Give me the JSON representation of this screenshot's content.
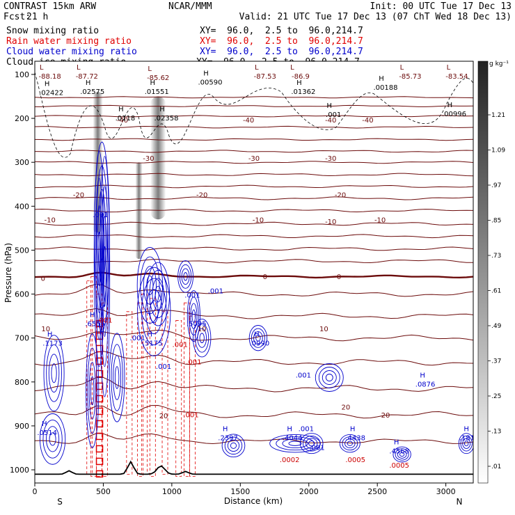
{
  "header": {
    "model": "CONTRAST 15km ARW",
    "center": "NCAR/MMM",
    "init": "Init: 00 UTC Tue 17 Dec 13",
    "fcst_label": "Fcst:",
    "fcst_value": "21 h",
    "valid": "Valid: 21 UTC Tue 17 Dec 13 (07 ChT Wed 18 Dec 13)",
    "fields": [
      {
        "name": "Snow mixing ratio",
        "xy": "XY=  96.0,  2.5 to  96.0,214.7",
        "color": "#000000"
      },
      {
        "name": "Rain water mixing ratio",
        "xy": "XY=  96.0,  2.5 to  96.0,214.7",
        "color": "#e00000"
      },
      {
        "name": "Cloud water mixing ratio",
        "xy": "XY=  96.0,  2.5 to  96.0,214.7",
        "color": "#0000cc"
      },
      {
        "name": "Cloud ice mixing ratio",
        "xy": "XY=  96.0,  2.5 to  96.0,214.7",
        "color": "#000000"
      }
    ]
  },
  "colorbar": {
    "unit": "g kg⁻¹",
    "ticks": [
      "1.21",
      "1.09",
      ".97",
      ".85",
      ".73",
      ".61",
      ".49",
      ".37",
      ".25",
      ".13",
      ".01"
    ]
  },
  "chart_data": {
    "type": "cross-section",
    "xlabel": "Distance (km)",
    "ylabel": "Pressure (hPa)",
    "x_ticks": [
      "0",
      "500",
      "1000",
      "1500",
      "2000",
      "2500",
      "3000"
    ],
    "y_ticks": [
      "100",
      "200",
      "300",
      "400",
      "500",
      "600",
      "700",
      "800",
      "900",
      "1000"
    ],
    "xlim": [
      0,
      3200
    ],
    "ylim": [
      1030,
      70
    ],
    "x_ends": {
      "left": "S",
      "right": "N"
    },
    "temperature_contours": [
      {
        "value": -40,
        "labels": [
          "-40",
          "-40",
          "-40",
          "-40"
        ]
      },
      {
        "value": -30,
        "labels": [
          "-30",
          "-30",
          "-30"
        ]
      },
      {
        "value": -20,
        "labels": [
          "-20",
          "-20",
          "-20"
        ]
      },
      {
        "value": -10,
        "labels": [
          "-10",
          "-10",
          "-10",
          "-10"
        ]
      },
      {
        "value": 0,
        "labels": [
          "0",
          "0",
          "0"
        ]
      },
      {
        "value": 10,
        "labels": [
          "10",
          "10",
          "10"
        ]
      },
      {
        "value": 20,
        "labels": [
          "20",
          "20",
          "20"
        ]
      }
    ],
    "temperature_minima": [
      {
        "x": 110,
        "p": 105,
        "label": "-88.18"
      },
      {
        "x": 380,
        "p": 105,
        "label": "-87.72"
      },
      {
        "x": 900,
        "p": 108,
        "label": "-85.62"
      },
      {
        "x": 1680,
        "p": 105,
        "label": "-87.53"
      },
      {
        "x": 1940,
        "p": 105,
        "label": "-86.9"
      },
      {
        "x": 2740,
        "p": 105,
        "label": "-85.73"
      },
      {
        "x": 3080,
        "p": 105,
        "label": "-83.54"
      }
    ],
    "ice_maxima": [
      {
        "x": 120,
        "p": 142,
        "label": ".02422"
      },
      {
        "x": 420,
        "p": 140,
        "label": ".02575"
      },
      {
        "x": 890,
        "p": 140,
        "label": ".01551"
      },
      {
        "x": 1280,
        "p": 118,
        "label": ".00590"
      },
      {
        "x": 1960,
        "p": 140,
        "label": ".01362"
      },
      {
        "x": 2560,
        "p": 130,
        "label": ".00188"
      },
      {
        "x": 660,
        "p": 200,
        "label": ".0118"
      },
      {
        "x": 960,
        "p": 200,
        "label": ".02358"
      },
      {
        "x": 3060,
        "p": 190,
        "label": ".00996"
      },
      {
        "x": 2180,
        "p": 192,
        "label": ".001"
      }
    ],
    "cloud_water_maxima": [
      {
        "x": 130,
        "p": 712,
        "label": ".1173"
      },
      {
        "x": 440,
        "p": 668,
        "label": ".6555"
      },
      {
        "x": 860,
        "p": 712,
        "label": ".5175"
      },
      {
        "x": 1180,
        "p": 668,
        "label": ".5095"
      },
      {
        "x": 1640,
        "p": 712,
        "label": ".0990"
      },
      {
        "x": 90,
        "p": 916,
        "label": ".0514"
      },
      {
        "x": 1410,
        "p": 928,
        "label": ".2397"
      },
      {
        "x": 1880,
        "p": 928,
        "label": ".4044"
      },
      {
        "x": 2340,
        "p": 928,
        "label": ".4438"
      },
      {
        "x": 2850,
        "p": 806,
        "label": ".0876"
      },
      {
        "x": 3170,
        "p": 928,
        "label": ".1811"
      },
      {
        "x": 2660,
        "p": 958,
        "label": ".4568"
      }
    ],
    "rain_water_maxima": [
      {
        "x": 1860,
        "p": 978,
        "label": ".0002"
      },
      {
        "x": 2340,
        "p": 978,
        "label": ".0005"
      },
      {
        "x": 2660,
        "p": 990,
        "label": ".0005"
      }
    ],
    "colors": {
      "temperature": "#6b0a0a",
      "cloud_water": "#0000cc",
      "rain_water": "#e00000",
      "cloud_ice": "#000000",
      "terrain": "#000000"
    }
  }
}
